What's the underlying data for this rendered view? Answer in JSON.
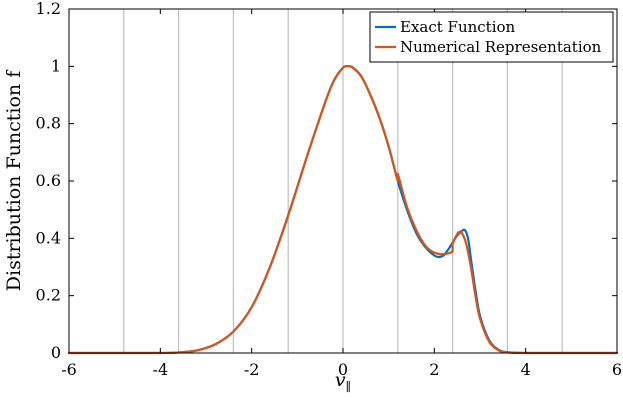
{
  "chart_data": {
    "type": "line",
    "xlabel": "v",
    "xlabel_subscript": "∥",
    "ylabel": "Distribution Function f",
    "xlim": [
      -6,
      6
    ],
    "ylim": [
      0,
      1.2
    ],
    "xticks": [
      -6,
      -4,
      -2,
      0,
      2,
      4,
      6
    ],
    "yticks": [
      0,
      0.2,
      0.4,
      0.6,
      0.8,
      1,
      1.2
    ],
    "xtick_labels": [
      "-6",
      "-4",
      "-2",
      "0",
      "2",
      "4",
      "6"
    ],
    "ytick_labels": [
      "0",
      "0.2",
      "0.4",
      "0.6",
      "0.8",
      "1",
      "1.2"
    ],
    "vertical_gridlines_x": [
      -4.8,
      -3.6,
      -2.4,
      -1.2,
      0,
      1.2,
      2.4,
      3.6,
      4.8
    ],
    "grid_color": "#c0c0c0",
    "legend_position": "top-right",
    "series": [
      {
        "name": "Exact Function",
        "color": "#0072bd",
        "x": [
          -6.0,
          -5.0,
          -4.0,
          -3.6,
          -3.2,
          -2.8,
          -2.4,
          -2.0,
          -1.6,
          -1.2,
          -0.8,
          -0.4,
          -0.2,
          0.0,
          0.1,
          0.2,
          0.4,
          0.6,
          0.8,
          1.0,
          1.2,
          1.4,
          1.6,
          1.8,
          2.0,
          2.1,
          2.2,
          2.3,
          2.4,
          2.5,
          2.6,
          2.65,
          2.7,
          2.75,
          2.8,
          2.9,
          3.0,
          3.2,
          3.4,
          3.6,
          4.0,
          5.0,
          6.0
        ],
        "y": [
          0.0,
          0.0,
          0.0,
          0.002,
          0.009,
          0.03,
          0.075,
          0.16,
          0.3,
          0.48,
          0.68,
          0.87,
          0.95,
          0.995,
          1.0,
          0.997,
          0.965,
          0.9,
          0.82,
          0.72,
          0.6,
          0.5,
          0.42,
          0.37,
          0.34,
          0.335,
          0.34,
          0.36,
          0.385,
          0.41,
          0.425,
          0.43,
          0.42,
          0.39,
          0.33,
          0.22,
          0.13,
          0.045,
          0.012,
          0.003,
          0.0,
          0.0,
          0.0
        ]
      },
      {
        "name": "Numerical Representation",
        "color": "#d95319",
        "x": [
          -6.0,
          -5.0,
          -4.0,
          -3.6,
          -3.2,
          -2.8,
          -2.4,
          -2.0,
          -1.6,
          -1.2,
          -0.8,
          -0.4,
          -0.2,
          0.0,
          0.1,
          0.2,
          0.4,
          0.6,
          0.8,
          1.0,
          1.2,
          1.2,
          1.4,
          1.6,
          1.8,
          2.0,
          2.2,
          2.4,
          2.4,
          2.5,
          2.55,
          2.6,
          2.7,
          2.8,
          2.9,
          3.0,
          3.2,
          3.4,
          3.6,
          4.0,
          5.0,
          6.0
        ],
        "y": [
          0.0,
          0.0,
          0.0,
          0.002,
          0.009,
          0.03,
          0.075,
          0.16,
          0.3,
          0.48,
          0.68,
          0.87,
          0.95,
          0.995,
          1.0,
          0.997,
          0.965,
          0.9,
          0.82,
          0.72,
          0.6,
          0.625,
          0.51,
          0.43,
          0.375,
          0.35,
          0.345,
          0.355,
          0.38,
          0.415,
          0.422,
          0.42,
          0.38,
          0.3,
          0.2,
          0.12,
          0.04,
          0.01,
          0.002,
          0.0,
          0.0,
          0.0
        ]
      }
    ]
  }
}
